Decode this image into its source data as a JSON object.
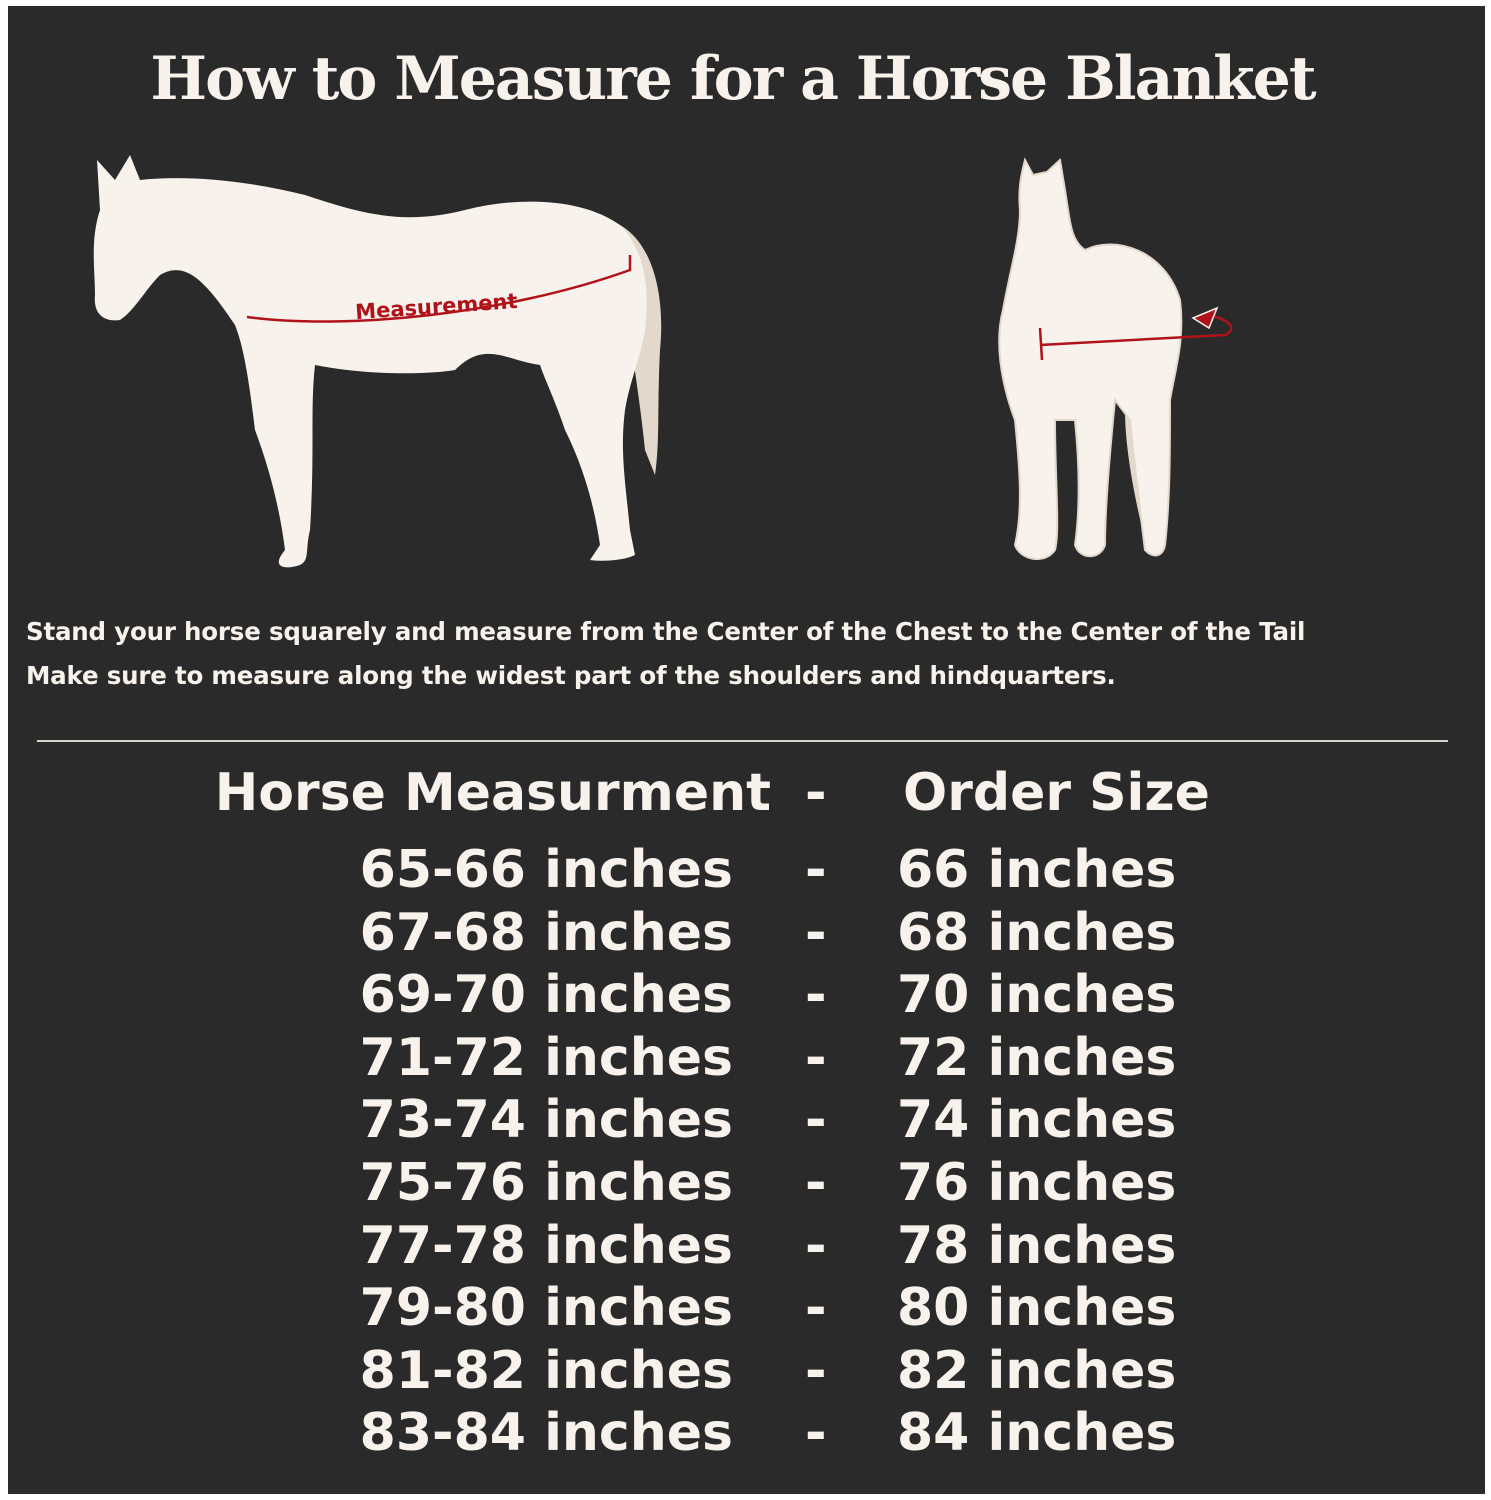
{
  "title": "How to Measure for a Horse Blanket",
  "diagram": {
    "side_view_label": "Measurement",
    "colors": {
      "background": "#2b2a2b",
      "horse": "#f7f2ec",
      "tail": "#e3d8cc",
      "measure_line": "#b0121a"
    }
  },
  "instructions": [
    "Stand your horse squarely and measure from the Center of the Chest to the Center of the Tail",
    "Make sure to measure along the widest part of the shoulders and hindquarters."
  ],
  "size_table": {
    "headers": {
      "measurement": "Horse Measurment",
      "separator": "-",
      "order_size": "Order Size"
    },
    "rows": [
      {
        "measurement": "65-66 inches",
        "separator": "-",
        "order_size": "66 inches"
      },
      {
        "measurement": "67-68 inches",
        "separator": "-",
        "order_size": "68 inches"
      },
      {
        "measurement": "69-70 inches",
        "separator": "-",
        "order_size": "70 inches"
      },
      {
        "measurement": "71-72 inches",
        "separator": "-",
        "order_size": "72 inches"
      },
      {
        "measurement": "73-74 inches",
        "separator": "-",
        "order_size": "74 inches"
      },
      {
        "measurement": "75-76 inches",
        "separator": "-",
        "order_size": "76 inches"
      },
      {
        "measurement": "77-78 inches",
        "separator": "-",
        "order_size": "78 inches"
      },
      {
        "measurement": "79-80 inches",
        "separator": "-",
        "order_size": "80 inches"
      },
      {
        "measurement": "81-82 inches",
        "separator": "-",
        "order_size": "82 inches"
      },
      {
        "measurement": "83-84 inches",
        "separator": "-",
        "order_size": "84 inches"
      }
    ]
  }
}
